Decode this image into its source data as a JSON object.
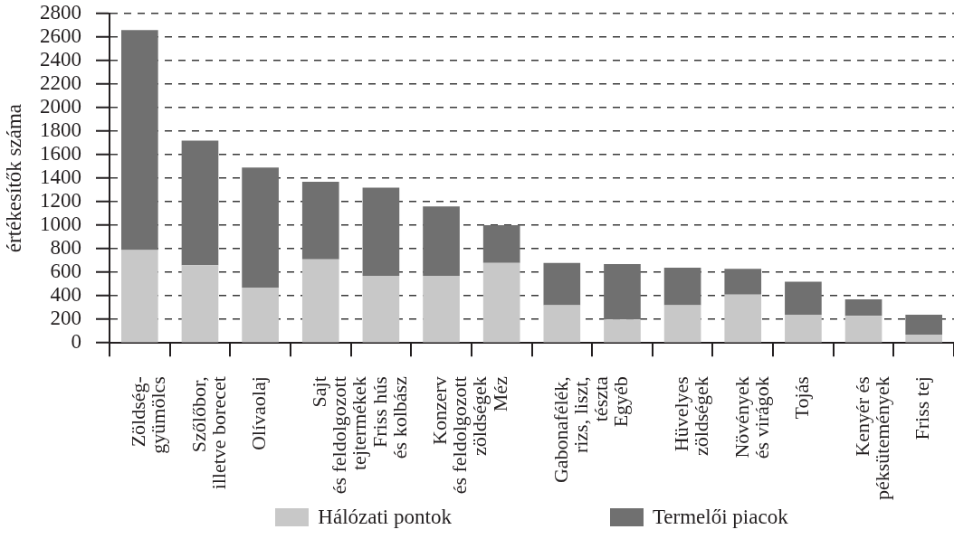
{
  "chart_data": {
    "type": "bar",
    "ylabel": "értékesítők száma",
    "categories": [
      "Zöldség-\ngyümölcs",
      "Szőlőbor,\nilletve borecet",
      "Olívaolaj",
      "Sajt\nés feldolgozott\ntejtermékek",
      "Friss hús\nés kolbász",
      "Konzerv\nés feldolgozott\nzöldségek",
      "Méz",
      "Gabonafélék,\nrizs, liszt,\ntészta",
      "Egyéb",
      "Hüvelyes\nzöldségek",
      "Növények\nés virágok",
      "Tojás",
      "Kenyér és\npéksütemények",
      "Friss tej"
    ],
    "series": [
      {
        "name": "Hálózati pontok",
        "color": "#c8c8c8",
        "values": [
          790,
          660,
          470,
          710,
          570,
          570,
          680,
          320,
          200,
          320,
          410,
          240,
          230,
          70
        ]
      },
      {
        "name": "Termelői piacok",
        "color": "#707070",
        "values": [
          1870,
          1060,
          1020,
          660,
          750,
          590,
          320,
          360,
          470,
          320,
          220,
          280,
          140,
          170
        ]
      }
    ],
    "stacked": true,
    "ylim": [
      0,
      2800
    ],
    "yticks": [
      0,
      200,
      400,
      600,
      800,
      1000,
      1200,
      1400,
      1600,
      1800,
      2000,
      2200,
      2400,
      2600,
      2800
    ],
    "grid": "y",
    "legend": "bottom"
  }
}
